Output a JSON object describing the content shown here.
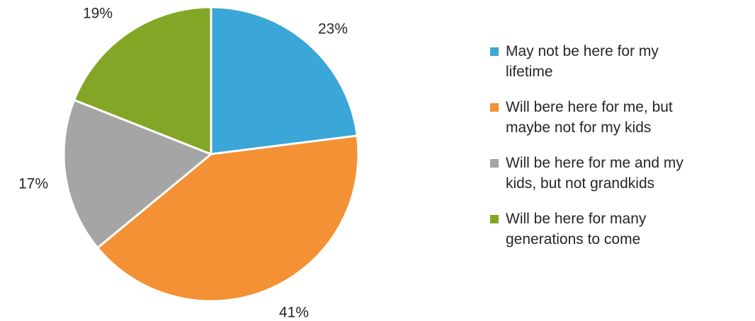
{
  "chart_data": {
    "type": "pie",
    "categories": [
      "May not be here for my\nlifetime",
      "Will bere here for me, but\nmaybe not for my kids",
      "Will be here for me and my\nkids, but not grandkids",
      "Will be here for many\ngenerations to come"
    ],
    "values": [
      23,
      41,
      17,
      19
    ],
    "labels": [
      "23%",
      "41%",
      "17%",
      "19%"
    ],
    "colors": [
      "#3ba6d8",
      "#f39134",
      "#a5a5a5",
      "#84a626"
    ],
    "legend_position": "right",
    "start_angle": "12 o'clock",
    "direction": "clockwise"
  }
}
